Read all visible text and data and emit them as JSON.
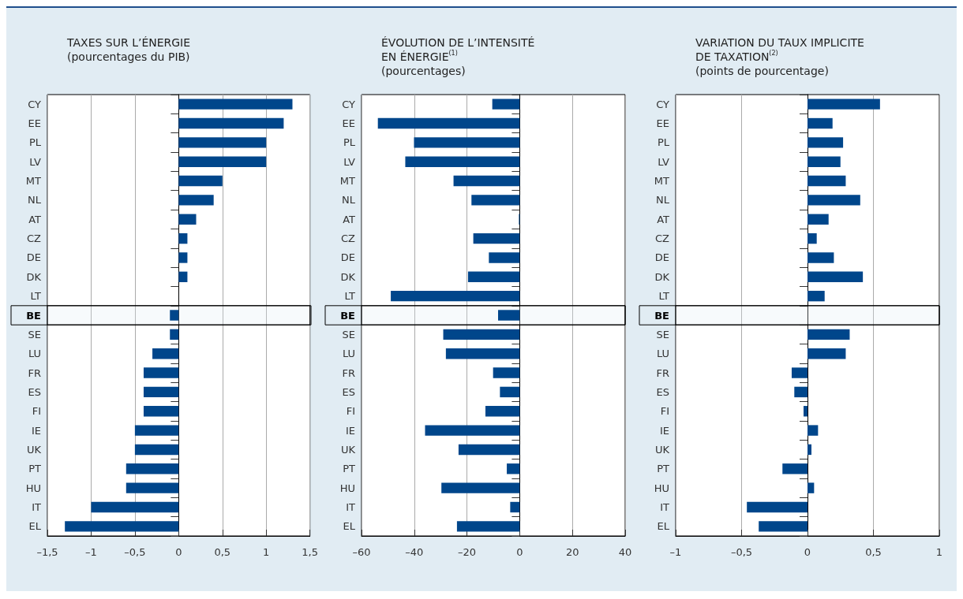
{
  "chart_data": [
    {
      "type": "bar",
      "orientation": "horizontal",
      "title": "TAXES SUR L’ÉNERGIE",
      "subtitle": "(pourcentages du PIB)",
      "categories": [
        "CY",
        "EE",
        "PL",
        "LV",
        "MT",
        "NL",
        "AT",
        "CZ",
        "DE",
        "DK",
        "LT",
        "BE",
        "SE",
        "LU",
        "FR",
        "ES",
        "FI",
        "IE",
        "UK",
        "PT",
        "HU",
        "IT",
        "EL"
      ],
      "values": [
        1.3,
        1.2,
        1.0,
        1.0,
        0.5,
        0.4,
        0.2,
        0.1,
        0.1,
        0.1,
        0,
        -0.1,
        -0.1,
        -0.3,
        -0.4,
        -0.4,
        -0.4,
        -0.5,
        -0.5,
        -0.6,
        -0.6,
        -1.0,
        -1.3
      ],
      "color": "#00468b",
      "xlim": [
        -1.5,
        1.5
      ],
      "xticks": [
        {
          "value": -1.5,
          "label": "–1,5"
        },
        {
          "value": -1,
          "label": "–1"
        },
        {
          "value": -0.5,
          "label": "–0,5"
        },
        0,
        {
          "value": 0.5,
          "label": "0,5"
        },
        1,
        {
          "value": 1.5,
          "label": "1,5"
        }
      ],
      "grid": "x",
      "bands": [
        {
          "axis": "y",
          "from": "BE",
          "to": "BE"
        }
      ]
    },
    {
      "type": "bar",
      "orientation": "horizontal",
      "title": "ÉVOLUTION DE L’INTENSITÉ\nEN ÉNERGIE$^{(1)}$",
      "subtitle": "(pourcentages)",
      "categories": [
        "CY",
        "EE",
        "PL",
        "LV",
        "MT",
        "NL",
        "AT",
        "CZ",
        "DE",
        "DK",
        "LT",
        "BE",
        "SE",
        "LU",
        "FR",
        "ES",
        "FI",
        "IE",
        "UK",
        "PT",
        "HU",
        "IT",
        "EL"
      ],
      "values": [
        -10.4,
        -53.8,
        -40.1,
        -43.4,
        -25.1,
        -18.3,
        -0.3,
        -17.6,
        -11.7,
        -19.6,
        -48.9,
        -8.2,
        -29.0,
        -28.0,
        -10.1,
        -7.5,
        -13.0,
        -35.9,
        -23.2,
        -4.9,
        -29.7,
        -3.6,
        -23.8
      ],
      "color": "#00468b",
      "xlim": [
        -60,
        40
      ],
      "xticks": [
        {
          "value": -60,
          "label": "–60"
        },
        {
          "value": -40,
          "label": "–40"
        },
        {
          "value": -20,
          "label": "–20"
        },
        0,
        20,
        40
      ],
      "grid": "x",
      "bands": [
        {
          "axis": "y",
          "from": "BE",
          "to": "BE"
        }
      ]
    },
    {
      "type": "bar",
      "orientation": "horizontal",
      "title": "VARIATION DU TAUX IMPLICITE\nDE TAXATION$^{(2)}$",
      "subtitle": "(points de pourcentage)",
      "categories": [
        "CY",
        "EE",
        "PL",
        "LV",
        "MT",
        "NL",
        "AT",
        "CZ",
        "DE",
        "DK",
        "LT",
        "BE",
        "SE",
        "LU",
        "FR",
        "ES",
        "FI",
        "IE",
        "UK",
        "PT",
        "HU",
        "IT",
        "EL"
      ],
      "values": [
        0.55,
        0.19,
        0.27,
        0.25,
        0.29,
        0.4,
        0.16,
        0.07,
        0.2,
        0.42,
        0.13,
        0,
        0.32,
        0.29,
        -0.12,
        -0.1,
        -0.03,
        0.08,
        0.03,
        -0.19,
        0.05,
        -0.46,
        -0.37
      ],
      "color": "#00468b",
      "xlim": [
        -1,
        1
      ],
      "xticks": [
        {
          "value": -1,
          "label": "–1"
        },
        {
          "value": -0.5,
          "label": "–0,5"
        },
        0,
        {
          "value": 0.5,
          "label": "0,5"
        },
        1
      ],
      "grid": "x",
      "bands": [
        {
          "axis": "y",
          "from": "BE",
          "to": "BE"
        }
      ]
    }
  ]
}
